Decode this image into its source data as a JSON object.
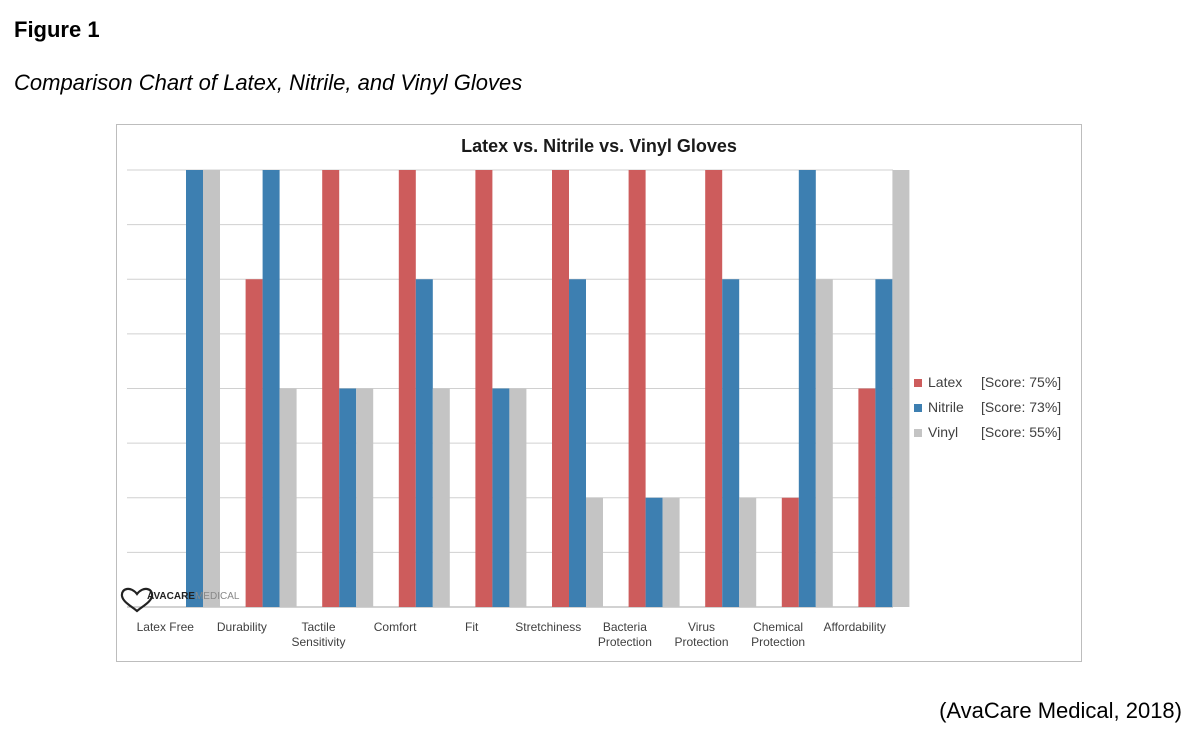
{
  "figure": {
    "label": "Figure 1",
    "caption": "Comparison Chart of Latex, Nitrile, and Vinyl Gloves",
    "citation": "(AvaCare Medical, 2018)"
  },
  "watermark": {
    "brand_bold": "AVACARE",
    "brand_light": "MEDICAL"
  },
  "colors": {
    "latex": "#cd5c5c",
    "nitrile": "#3d7fb1",
    "vinyl": "#c4c4c4",
    "grid": "#d0d0d0"
  },
  "chart_data": {
    "type": "bar",
    "title": "Latex vs. Nitrile vs. Vinyl Gloves",
    "xlabel": "",
    "ylabel": "",
    "ylim": [
      0,
      8
    ],
    "grid": true,
    "legend_position": "right",
    "categories": [
      [
        "Latex Free"
      ],
      [
        "Durability"
      ],
      [
        "Tactile",
        "Sensitivity"
      ],
      [
        "Comfort"
      ],
      [
        "Fit"
      ],
      [
        "Stretchiness"
      ],
      [
        "Bacteria",
        "Protection"
      ],
      [
        "Virus",
        "Protection"
      ],
      [
        "Chemical",
        "Protection"
      ],
      [
        "Affordability"
      ]
    ],
    "series": [
      {
        "key": "latex",
        "name": "Latex",
        "score_label": "[Score: 75%]",
        "values": [
          0,
          6,
          8,
          8,
          8,
          8,
          8,
          8,
          2,
          4
        ]
      },
      {
        "key": "nitrile",
        "name": "Nitrile",
        "score_label": "[Score: 73%]",
        "values": [
          8,
          8,
          4,
          6,
          4,
          6,
          2,
          6,
          8,
          6
        ]
      },
      {
        "key": "vinyl",
        "name": "Vinyl",
        "score_label": "[Score: 55%]",
        "values": [
          8,
          4,
          4,
          4,
          4,
          2,
          2,
          2,
          6,
          8
        ]
      }
    ]
  }
}
